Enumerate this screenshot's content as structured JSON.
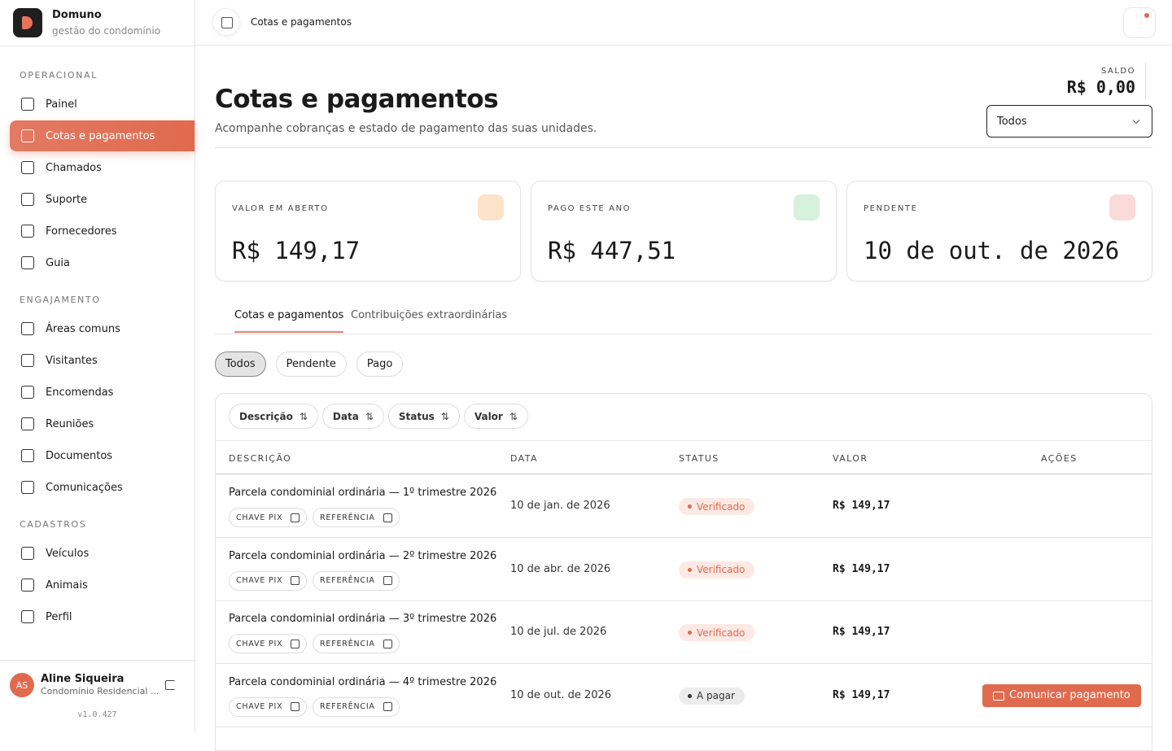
{
  "brand": {
    "name": "Domuno",
    "tagline": "gestão do condomínio"
  },
  "nav": [
    {
      "title": "OPERACIONAL",
      "items": [
        "Painel",
        "Cotas e pagamentos",
        "Chamados",
        "Suporte",
        "Fornecedores",
        "Guia"
      ]
    },
    {
      "title": "ENGAJAMENTO",
      "items": [
        "Áreas comuns",
        "Visitantes",
        "Encomendas",
        "Reuniões",
        "Documentos",
        "Comunicações"
      ]
    },
    {
      "title": "CADASTROS",
      "items": [
        "Veículos",
        "Animais",
        "Perfil"
      ]
    }
  ],
  "user": {
    "initials": "AS",
    "name": "Aline Siqueira",
    "org": "Condomínio Residencial ...",
    "version": "v1.0.427"
  },
  "topbar": {
    "breadcrumb": "Cotas e pagamentos"
  },
  "header": {
    "title": "Cotas e pagamentos",
    "subtitle": "Acompanhe cobranças e estado de pagamento das suas unidades.",
    "balance_label": "SALDO",
    "balance": "R$ 0,00",
    "select": "Todos"
  },
  "cards": [
    {
      "label": "VALOR EM ABERTO",
      "value": "R$ 149,17"
    },
    {
      "label": "PAGO ESTE ANO",
      "value": "R$ 447,51"
    },
    {
      "label": "PENDENTE",
      "value": "10 de out. de 2026"
    }
  ],
  "tabs": [
    "Cotas e pagamentos",
    "Contribuições extraordinárias"
  ],
  "filters": [
    "Todos",
    "Pendente",
    "Pago"
  ],
  "sort_buttons": [
    "Descrição",
    "Data",
    "Status",
    "Valor"
  ],
  "table": {
    "columns": [
      "DESCRIÇÃO",
      "DATA",
      "STATUS",
      "VALOR",
      "AÇÕES"
    ],
    "chips": [
      "CHAVE PIX",
      "REFERÊNCIA"
    ],
    "rows": [
      {
        "description": "Parcela condominial ordinária — 1º trimestre 2026",
        "date": "10 de jan. de 2026",
        "status": "Verificado",
        "value": "R$ 149,17"
      },
      {
        "description": "Parcela condominial ordinária — 2º trimestre 2026",
        "date": "10 de abr. de 2026",
        "status": "Verificado",
        "value": "R$ 149,17"
      },
      {
        "description": "Parcela condominial ordinária — 3º trimestre 2026",
        "date": "10 de jul. de 2026",
        "status": "Verificado",
        "value": "R$ 149,17"
      },
      {
        "description": "Parcela condominial ordinária — 4º trimestre 2026",
        "date": "10 de out. de 2026",
        "status": "A pagar",
        "value": "R$ 149,17",
        "action": "Comunicar pagamento"
      }
    ]
  }
}
